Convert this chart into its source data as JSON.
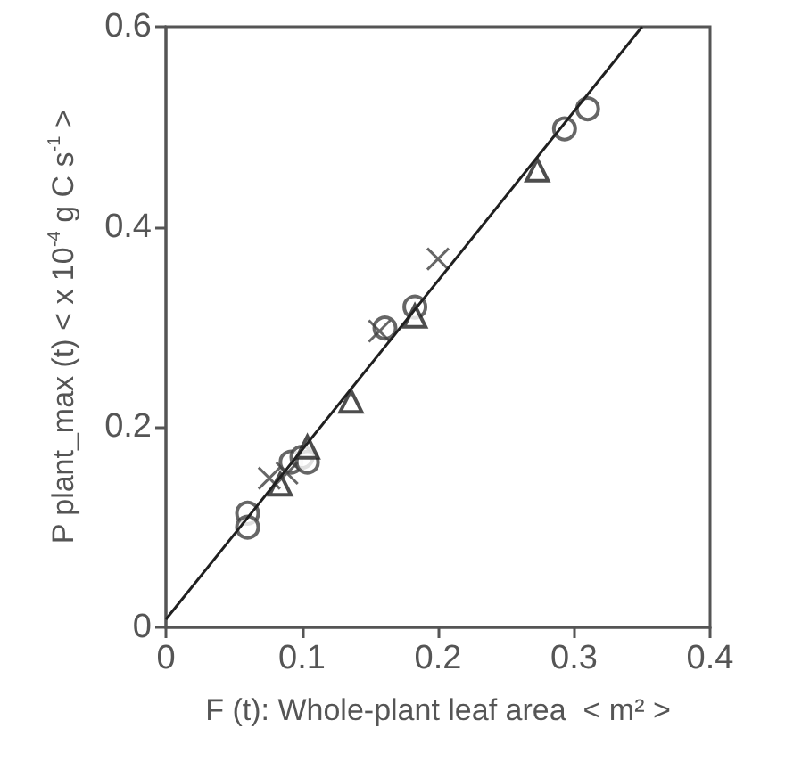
{
  "chart_data": {
    "type": "scatter",
    "xlabel": "F (t): Whole-plant leaf area  < m² >",
    "ylabel": "P plant_max (t) < x 10$^{-4}$ g C s$^{-1}$ >",
    "xlim": [
      0,
      0.4
    ],
    "xticks": [
      0,
      0.1,
      0.2,
      0.3,
      0.4
    ],
    "ylim": [
      0,
      0.6
    ],
    "yticks": [
      0,
      0.2,
      0.4,
      0.6
    ],
    "grid": false,
    "series": [
      {
        "color": "#404040",
        "marker": "circle",
        "x": [
          0.06,
          0.06,
          0.092,
          0.1,
          0.104,
          0.161,
          0.183,
          0.293,
          0.31
        ],
        "values": [
          0.114,
          0.1,
          0.165,
          0.17,
          0.165,
          0.299,
          0.32,
          0.498,
          0.518
        ]
      },
      {
        "color": "#202020",
        "marker": "triangle",
        "x": [
          0.084,
          0.104,
          0.136,
          0.183,
          0.273
        ],
        "values": [
          0.143,
          0.18,
          0.226,
          0.311,
          0.457
        ]
      },
      {
        "color": "#404040",
        "marker": "cross",
        "x": [
          0.076,
          0.089,
          0.157,
          0.2
        ],
        "values": [
          0.149,
          0.154,
          0.296,
          0.368
        ]
      },
      {
        "type": "line",
        "color": "#202020",
        "marker": "none",
        "line_style": "solid",
        "x": [
          0,
          0.35
        ],
        "values": [
          0.008,
          0.6
        ]
      }
    ]
  }
}
